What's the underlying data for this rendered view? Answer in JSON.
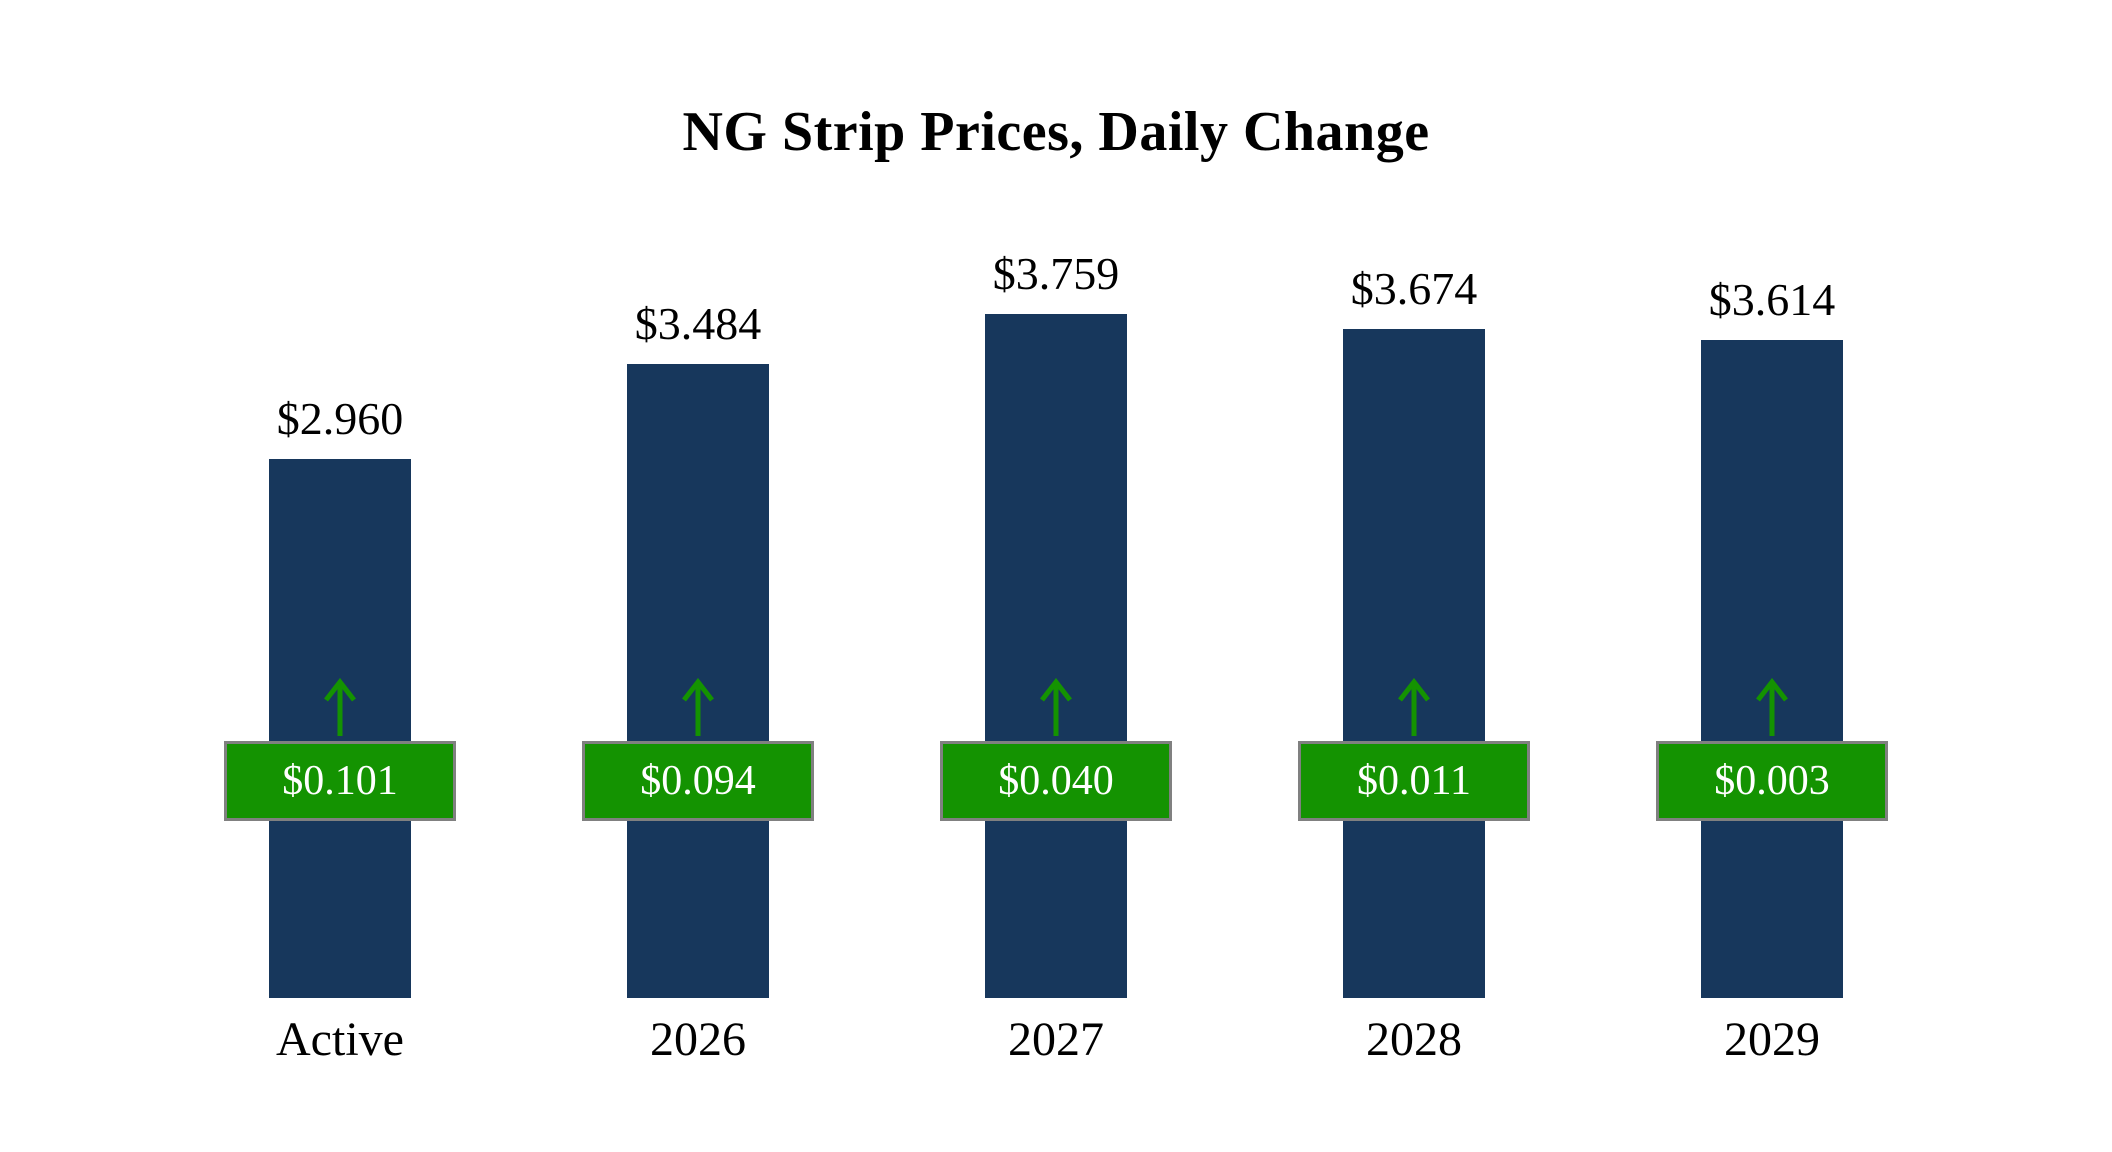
{
  "title": "NG Strip Prices, Daily Change",
  "chart_data": {
    "type": "bar",
    "title": "NG Strip Prices, Daily Change",
    "categories": [
      "Active",
      "2026",
      "2027",
      "2028",
      "2029"
    ],
    "values": [
      2.96,
      3.484,
      3.759,
      3.674,
      3.614
    ],
    "daily_changes": [
      0.101,
      0.094,
      0.04,
      0.011,
      0.003
    ],
    "value_labels": [
      "$2.960",
      "$3.484",
      "$3.759",
      "$3.674",
      "$3.614"
    ],
    "change_labels": [
      "$0.101",
      "$0.094",
      "$0.040",
      "$0.011",
      "$0.003"
    ],
    "change_direction": "up",
    "bar_color": "#17375C",
    "change_badge_color": "#149301",
    "badge_border_color": "#808080",
    "badge_text_color": "#ffffff",
    "ylim": [
      0,
      4.2
    ],
    "grid": false,
    "legend": false
  }
}
